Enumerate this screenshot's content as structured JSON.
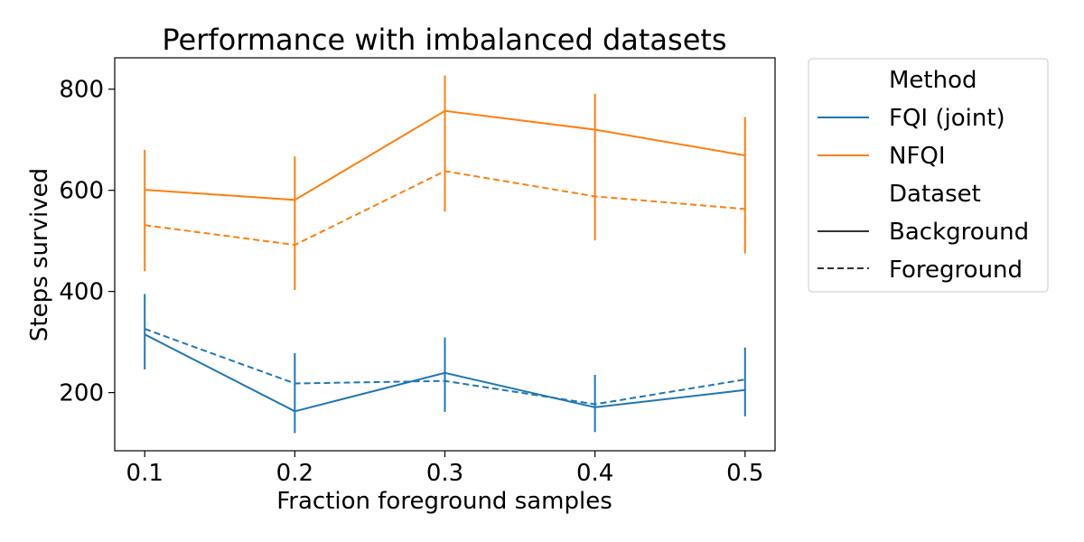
{
  "chart_data": {
    "type": "line",
    "title": "Performance with imbalanced datasets",
    "xlabel": "Fraction foreground samples",
    "ylabel": "Steps survived",
    "x": [
      0.1,
      0.2,
      0.3,
      0.4,
      0.5
    ],
    "x_ticks": [
      "0.1",
      "0.2",
      "0.3",
      "0.4",
      "0.5"
    ],
    "y_ticks": [
      "200",
      "400",
      "600",
      "800"
    ],
    "xlim": [
      0.08,
      0.52
    ],
    "ylim": [
      85,
      862
    ],
    "grid": false,
    "legend_position": "outside-right-top",
    "legend": {
      "method_title": "Method",
      "dataset_title": "Dataset",
      "methods": [
        {
          "name": "FQI (joint)",
          "color": "#1f77b4"
        },
        {
          "name": "NFQI",
          "color": "#ff7f0e"
        }
      ],
      "datasets": [
        {
          "name": "Background",
          "style": "solid"
        },
        {
          "name": "Foreground",
          "style": "dashed"
        }
      ]
    },
    "series": [
      {
        "name": "FQI (joint)",
        "dataset": "Background",
        "color": "#1f77b4",
        "style": "solid",
        "values": [
          315,
          163,
          239,
          171,
          205
        ],
        "err_low": [
          246,
          120,
          162,
          122,
          153
        ],
        "err_high": [
          395,
          278,
          309,
          235,
          289
        ]
      },
      {
        "name": "FQI (joint)",
        "dataset": "Foreground",
        "color": "#1f77b4",
        "style": "dashed",
        "values": [
          326,
          218,
          223,
          177,
          226
        ],
        "err_low": null,
        "err_high": null
      },
      {
        "name": "NFQI",
        "dataset": "Background",
        "color": "#ff7f0e",
        "style": "solid",
        "values": [
          601,
          581,
          757,
          720,
          669
        ],
        "err_low": [
          440,
          403,
          558,
          501,
          475
        ],
        "err_high": [
          680,
          667,
          827,
          791,
          745
        ]
      },
      {
        "name": "NFQI",
        "dataset": "Foreground",
        "color": "#ff7f0e",
        "style": "dashed",
        "values": [
          531,
          492,
          638,
          588,
          563
        ],
        "err_low": null,
        "err_high": null
      }
    ]
  }
}
